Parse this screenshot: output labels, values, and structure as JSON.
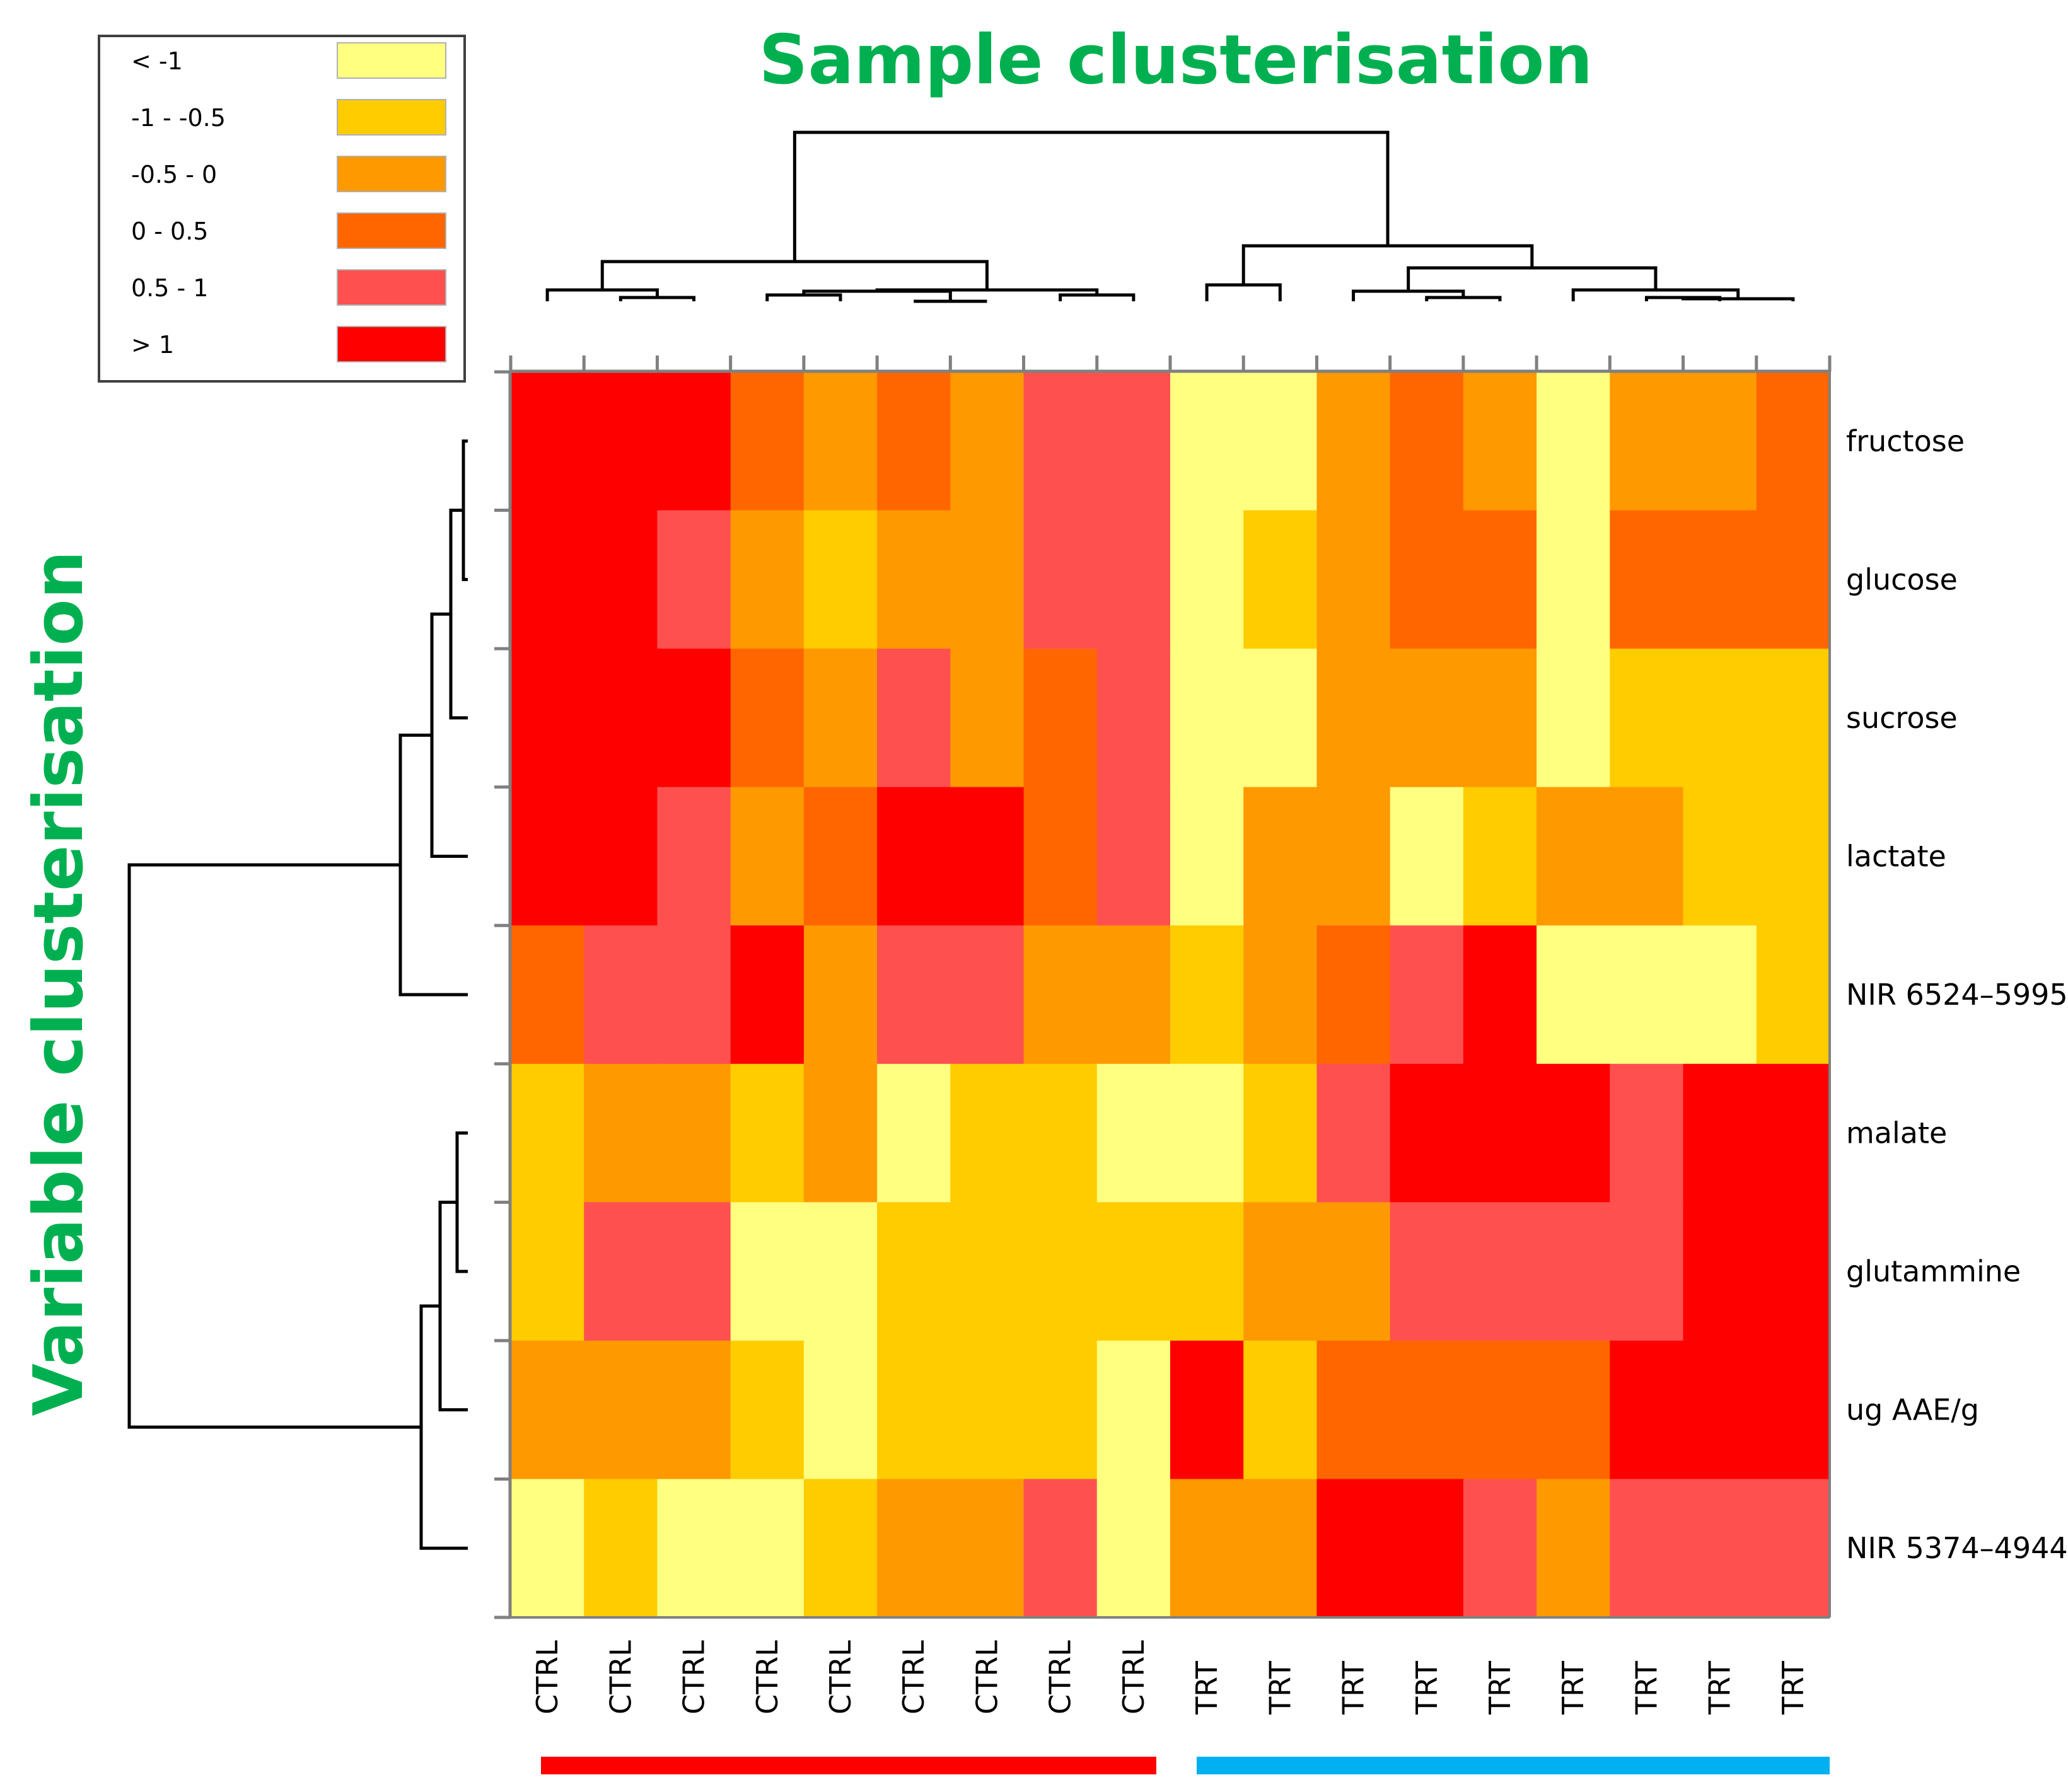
{
  "chart_data": {
    "type": "heatmap",
    "title": "Sample clusterisation",
    "ylabel": "Variable clusterisation",
    "xlabel": "",
    "columns": [
      "CTRL",
      "CTRL",
      "CTRL",
      "CTRL",
      "CTRL",
      "CTRL",
      "CTRL",
      "CTRL",
      "CTRL",
      "TRT",
      "TRT",
      "TRT",
      "TRT",
      "TRT",
      "TRT",
      "TRT",
      "TRT",
      "TRT"
    ],
    "rows": [
      "fructose",
      "glucose",
      "sucrose",
      "lactate",
      "NIR 6524–5995",
      "malate",
      "glutammine",
      "ug AAE/g",
      "NIR 5374–4944"
    ],
    "legend": [
      {
        "label": "< -1",
        "color": "#FFFF80"
      },
      {
        "label": "-1 - -0.5",
        "color": "#FFCC00"
      },
      {
        "label": "-0.5 - 0",
        "color": "#FF9900"
      },
      {
        "label": "0 - 0.5",
        "color": "#FF6600"
      },
      {
        "label": "0.5 - 1",
        "color": "#FF5050"
      },
      {
        "label": "> 1",
        "color": "#FF0000"
      }
    ],
    "bins": [
      [
        5,
        5,
        5,
        3,
        2,
        3,
        2,
        4,
        4,
        0,
        0,
        2,
        3,
        2,
        0,
        2,
        2,
        3
      ],
      [
        5,
        5,
        4,
        2,
        1,
        2,
        2,
        4,
        4,
        0,
        1,
        2,
        3,
        3,
        0,
        3,
        3,
        3
      ],
      [
        5,
        5,
        5,
        3,
        2,
        4,
        2,
        3,
        4,
        0,
        0,
        2,
        2,
        2,
        0,
        1,
        1,
        1
      ],
      [
        5,
        5,
        4,
        2,
        3,
        5,
        5,
        3,
        4,
        0,
        2,
        2,
        0,
        1,
        2,
        2,
        1,
        1
      ],
      [
        3,
        4,
        4,
        5,
        2,
        4,
        4,
        2,
        2,
        1,
        2,
        3,
        4,
        5,
        0,
        0,
        0,
        1
      ],
      [
        1,
        2,
        2,
        1,
        2,
        0,
        1,
        1,
        0,
        0,
        1,
        4,
        5,
        5,
        5,
        4,
        5,
        5
      ],
      [
        1,
        4,
        4,
        0,
        0,
        1,
        1,
        1,
        1,
        1,
        2,
        2,
        4,
        4,
        4,
        4,
        5,
        5
      ],
      [
        2,
        2,
        2,
        1,
        0,
        1,
        1,
        1,
        0,
        5,
        1,
        3,
        3,
        3,
        3,
        5,
        5,
        5
      ],
      [
        0,
        1,
        0,
        0,
        1,
        2,
        2,
        4,
        0,
        2,
        2,
        5,
        5,
        4,
        2,
        4,
        4,
        4
      ]
    ],
    "groups": [
      {
        "name": "CTRL",
        "color": "#FF0000"
      },
      {
        "name": "TRT",
        "color": "#00B0F0"
      }
    ],
    "line_color": "#000000",
    "title_color": "#00B050",
    "axis_color": "#808080"
  }
}
